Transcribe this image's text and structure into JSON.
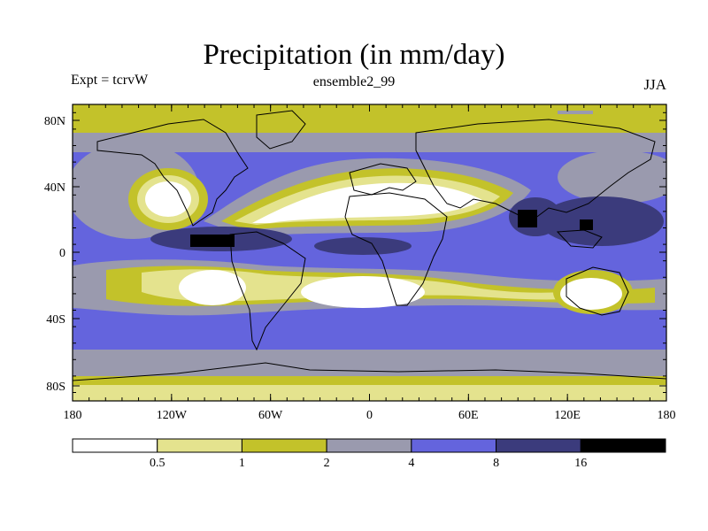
{
  "title": "Precipitation (in mm/day)",
  "subtitle_left": "Expt = tcrvW",
  "subtitle_center": "ensemble2_99",
  "subtitle_right": "JJA",
  "latitude_labels": [
    "80N",
    "40N",
    "0",
    "40S",
    "80S"
  ],
  "longitude_labels": [
    "180",
    "120W",
    "60W",
    "0",
    "60E",
    "120E",
    "180"
  ],
  "colorbar": {
    "boundaries": [
      "0.5",
      "1",
      "2",
      "4",
      "8",
      "16"
    ],
    "colors": [
      "#ffffff",
      "#e4e38e",
      "#c3c22a",
      "#9a9aae",
      "#6464dd",
      "#3b3b7c",
      "#000000"
    ]
  },
  "colors": {
    "ocean_base": "#6464dd",
    "coast": "#000000"
  }
}
